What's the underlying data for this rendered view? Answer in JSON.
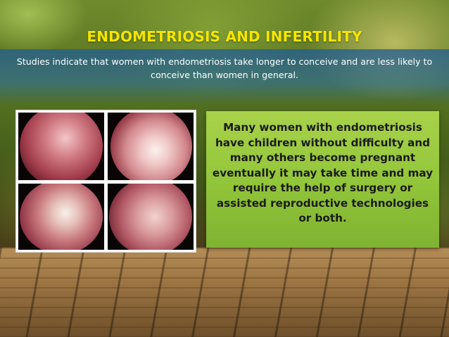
{
  "slide": {
    "title": "ENDOMETRIOSIS AND INFERTILITY",
    "subtitle": "Studies indicate that women with endometriosis take longer to conceive and are less likely to conceive than women in general.",
    "body_text": "Many women with endometriosis have children without difficulty and many others become pregnant eventually it may take time and may require the help of surgery or assisted reproductive technologies or both."
  },
  "colors": {
    "title": "#f5e600",
    "subtitle_band": "#2f6ea8",
    "textbox": "#9ccb42"
  }
}
